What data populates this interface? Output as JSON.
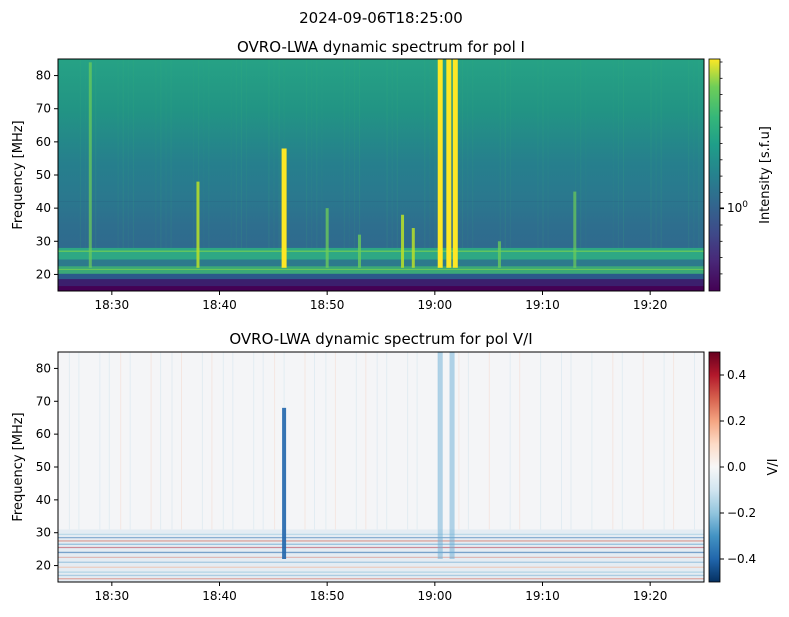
{
  "suptitle": "2024-09-06T18:25:00",
  "chart_data": [
    {
      "type": "heatmap",
      "title": "OVRO-LWA dynamic spectrum for pol I",
      "xlabel": "",
      "ylabel": "Frequency [MHz]",
      "x_ticks": [
        "18:30",
        "18:40",
        "18:50",
        "19:00",
        "19:10",
        "19:20"
      ],
      "y_ticks": [
        "20",
        "30",
        "40",
        "50",
        "60",
        "70",
        "80"
      ],
      "xlim": [
        "18:25",
        "19:25"
      ],
      "ylim": [
        15,
        85
      ],
      "colormap": "viridis",
      "colorbar": {
        "label": "Intensity [s.f.u]",
        "scale": "log",
        "tick_label": "10^0"
      },
      "bursts": [
        {
          "time": "18:28",
          "f_low": 22,
          "f_high": 84,
          "strength": 0.35
        },
        {
          "time": "18:38",
          "f_low": 22,
          "f_high": 48,
          "strength": 0.75
        },
        {
          "time": "18:46",
          "f_low": 22,
          "f_high": 58,
          "strength": 1.0
        },
        {
          "time": "18:50",
          "f_low": 22,
          "f_high": 40,
          "strength": 0.45
        },
        {
          "time": "18:53",
          "f_low": 22,
          "f_high": 32,
          "strength": 0.5
        },
        {
          "time": "18:57",
          "f_low": 22,
          "f_high": 38,
          "strength": 0.75
        },
        {
          "time": "18:58",
          "f_low": 22,
          "f_high": 34,
          "strength": 0.7
        },
        {
          "time": "19:00.5",
          "f_low": 22,
          "f_high": 85,
          "strength": 1.0
        },
        {
          "time": "19:01.3",
          "f_low": 22,
          "f_high": 85,
          "strength": 1.0
        },
        {
          "time": "19:01.9",
          "f_low": 22,
          "f_high": 85,
          "strength": 1.0
        },
        {
          "time": "19:06",
          "f_low": 22,
          "f_high": 30,
          "strength": 0.45
        },
        {
          "time": "19:13",
          "f_low": 22,
          "f_high": 45,
          "strength": 0.3
        }
      ]
    },
    {
      "type": "heatmap",
      "title": "OVRO-LWA dynamic spectrum for pol V/I",
      "xlabel": "",
      "ylabel": "Frequency [MHz]",
      "x_ticks": [
        "18:30",
        "18:40",
        "18:50",
        "19:00",
        "19:10",
        "19:20"
      ],
      "y_ticks": [
        "20",
        "30",
        "40",
        "50",
        "60",
        "70",
        "80"
      ],
      "xlim": [
        "18:25",
        "19:25"
      ],
      "ylim": [
        15,
        85
      ],
      "colormap": "RdBu_r",
      "colorbar": {
        "label": "V/I",
        "range": [
          -0.5,
          0.5
        ],
        "ticks": [
          "0.4",
          "0.2",
          "0.0",
          "−0.2",
          "−0.4"
        ]
      },
      "features": [
        {
          "time": "18:46",
          "f_low": 22,
          "f_high": 68,
          "value": -0.45
        },
        {
          "time": "19:00.5",
          "f_low": 22,
          "f_high": 85,
          "value": -0.2
        },
        {
          "time": "19:01.6",
          "f_low": 22,
          "f_high": 85,
          "value": -0.3
        }
      ]
    }
  ]
}
